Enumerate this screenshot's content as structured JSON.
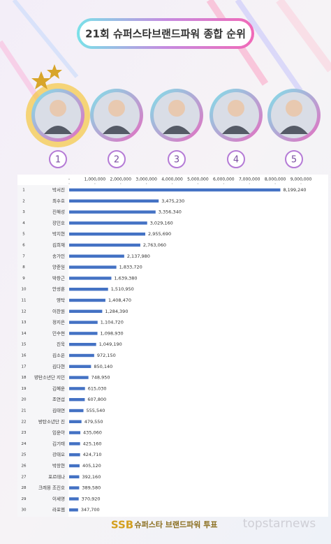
{
  "chart_data": {
    "type": "bar",
    "orientation": "horizontal",
    "title": "21회 슈퍼스타브랜드파워 종합 순위",
    "ranks": [
      "1",
      "2",
      "3",
      "4",
      "5",
      "6",
      "7",
      "8",
      "9",
      "10",
      "11",
      "12",
      "13",
      "14",
      "15",
      "16",
      "17",
      "18",
      "19",
      "20",
      "21",
      "22",
      "23",
      "24",
      "25",
      "26",
      "27",
      "28",
      "29",
      "30"
    ],
    "categories": [
      "박서진",
      "최수호",
      "진해성",
      "장민호",
      "박지현",
      "김희재",
      "송가인",
      "양준일",
      "박창근",
      "안성훈",
      "영탁",
      "이찬원",
      "정지은",
      "민수현",
      "진욱",
      "김소은",
      "김다현",
      "방탄소년단 지민",
      "김혜윤",
      "조연섭",
      "김태연",
      "방탄소년단 진",
      "임윤아",
      "김기태",
      "강태오",
      "박장현",
      "포르테나",
      "크레용 조진호",
      "이세영",
      "라포엠"
    ],
    "values": [
      8199240,
      3475230,
      3356340,
      3029160,
      2955690,
      2763060,
      2137980,
      1833720,
      1639380,
      1510950,
      1408470,
      1284390,
      1104720,
      1098930,
      1049190,
      972150,
      850140,
      748950,
      615030,
      607800,
      555540,
      479550,
      435060,
      425160,
      424710,
      405120,
      392160,
      389580,
      370920,
      347700
    ],
    "value_labels": [
      "8,199,240",
      "3,475,230",
      "3,356,340",
      "3,029,160",
      "2,955,690",
      "2,763,060",
      "2,137,980",
      "1,833,720",
      "1,639,380",
      "1,510,950",
      "1,408,470",
      "1,284,390",
      "1,104,720",
      "1,098,930",
      "1,049,190",
      "972,150",
      "850,140",
      "748,950",
      "615,030",
      "607,800",
      "555,540",
      "479,550",
      "435,060",
      "425,160",
      "424,710",
      "405,120",
      "392,160",
      "389,580",
      "370,920",
      "347,700"
    ],
    "color": "#4472c4",
    "xlim": [
      0,
      9000000
    ],
    "xticks": [
      {
        "value": 0,
        "label": "-"
      },
      {
        "value": 1000000,
        "label": "1,000,000"
      },
      {
        "value": 2000000,
        "label": "2,000,000"
      },
      {
        "value": 3000000,
        "label": "3,000,000"
      },
      {
        "value": 4000000,
        "label": "4,000,000"
      },
      {
        "value": 5000000,
        "label": "5,000,000"
      },
      {
        "value": 6000000,
        "label": "6,000,000"
      },
      {
        "value": 7000000,
        "label": "7,000,000"
      },
      {
        "value": 8000000,
        "label": "8,000,000"
      },
      {
        "value": 9000000,
        "label": "9,000,000"
      }
    ],
    "footer": {
      "logo": "SSB",
      "text": "슈퍼스타 브랜드파워 투표",
      "watermark": "topstarnews"
    }
  }
}
